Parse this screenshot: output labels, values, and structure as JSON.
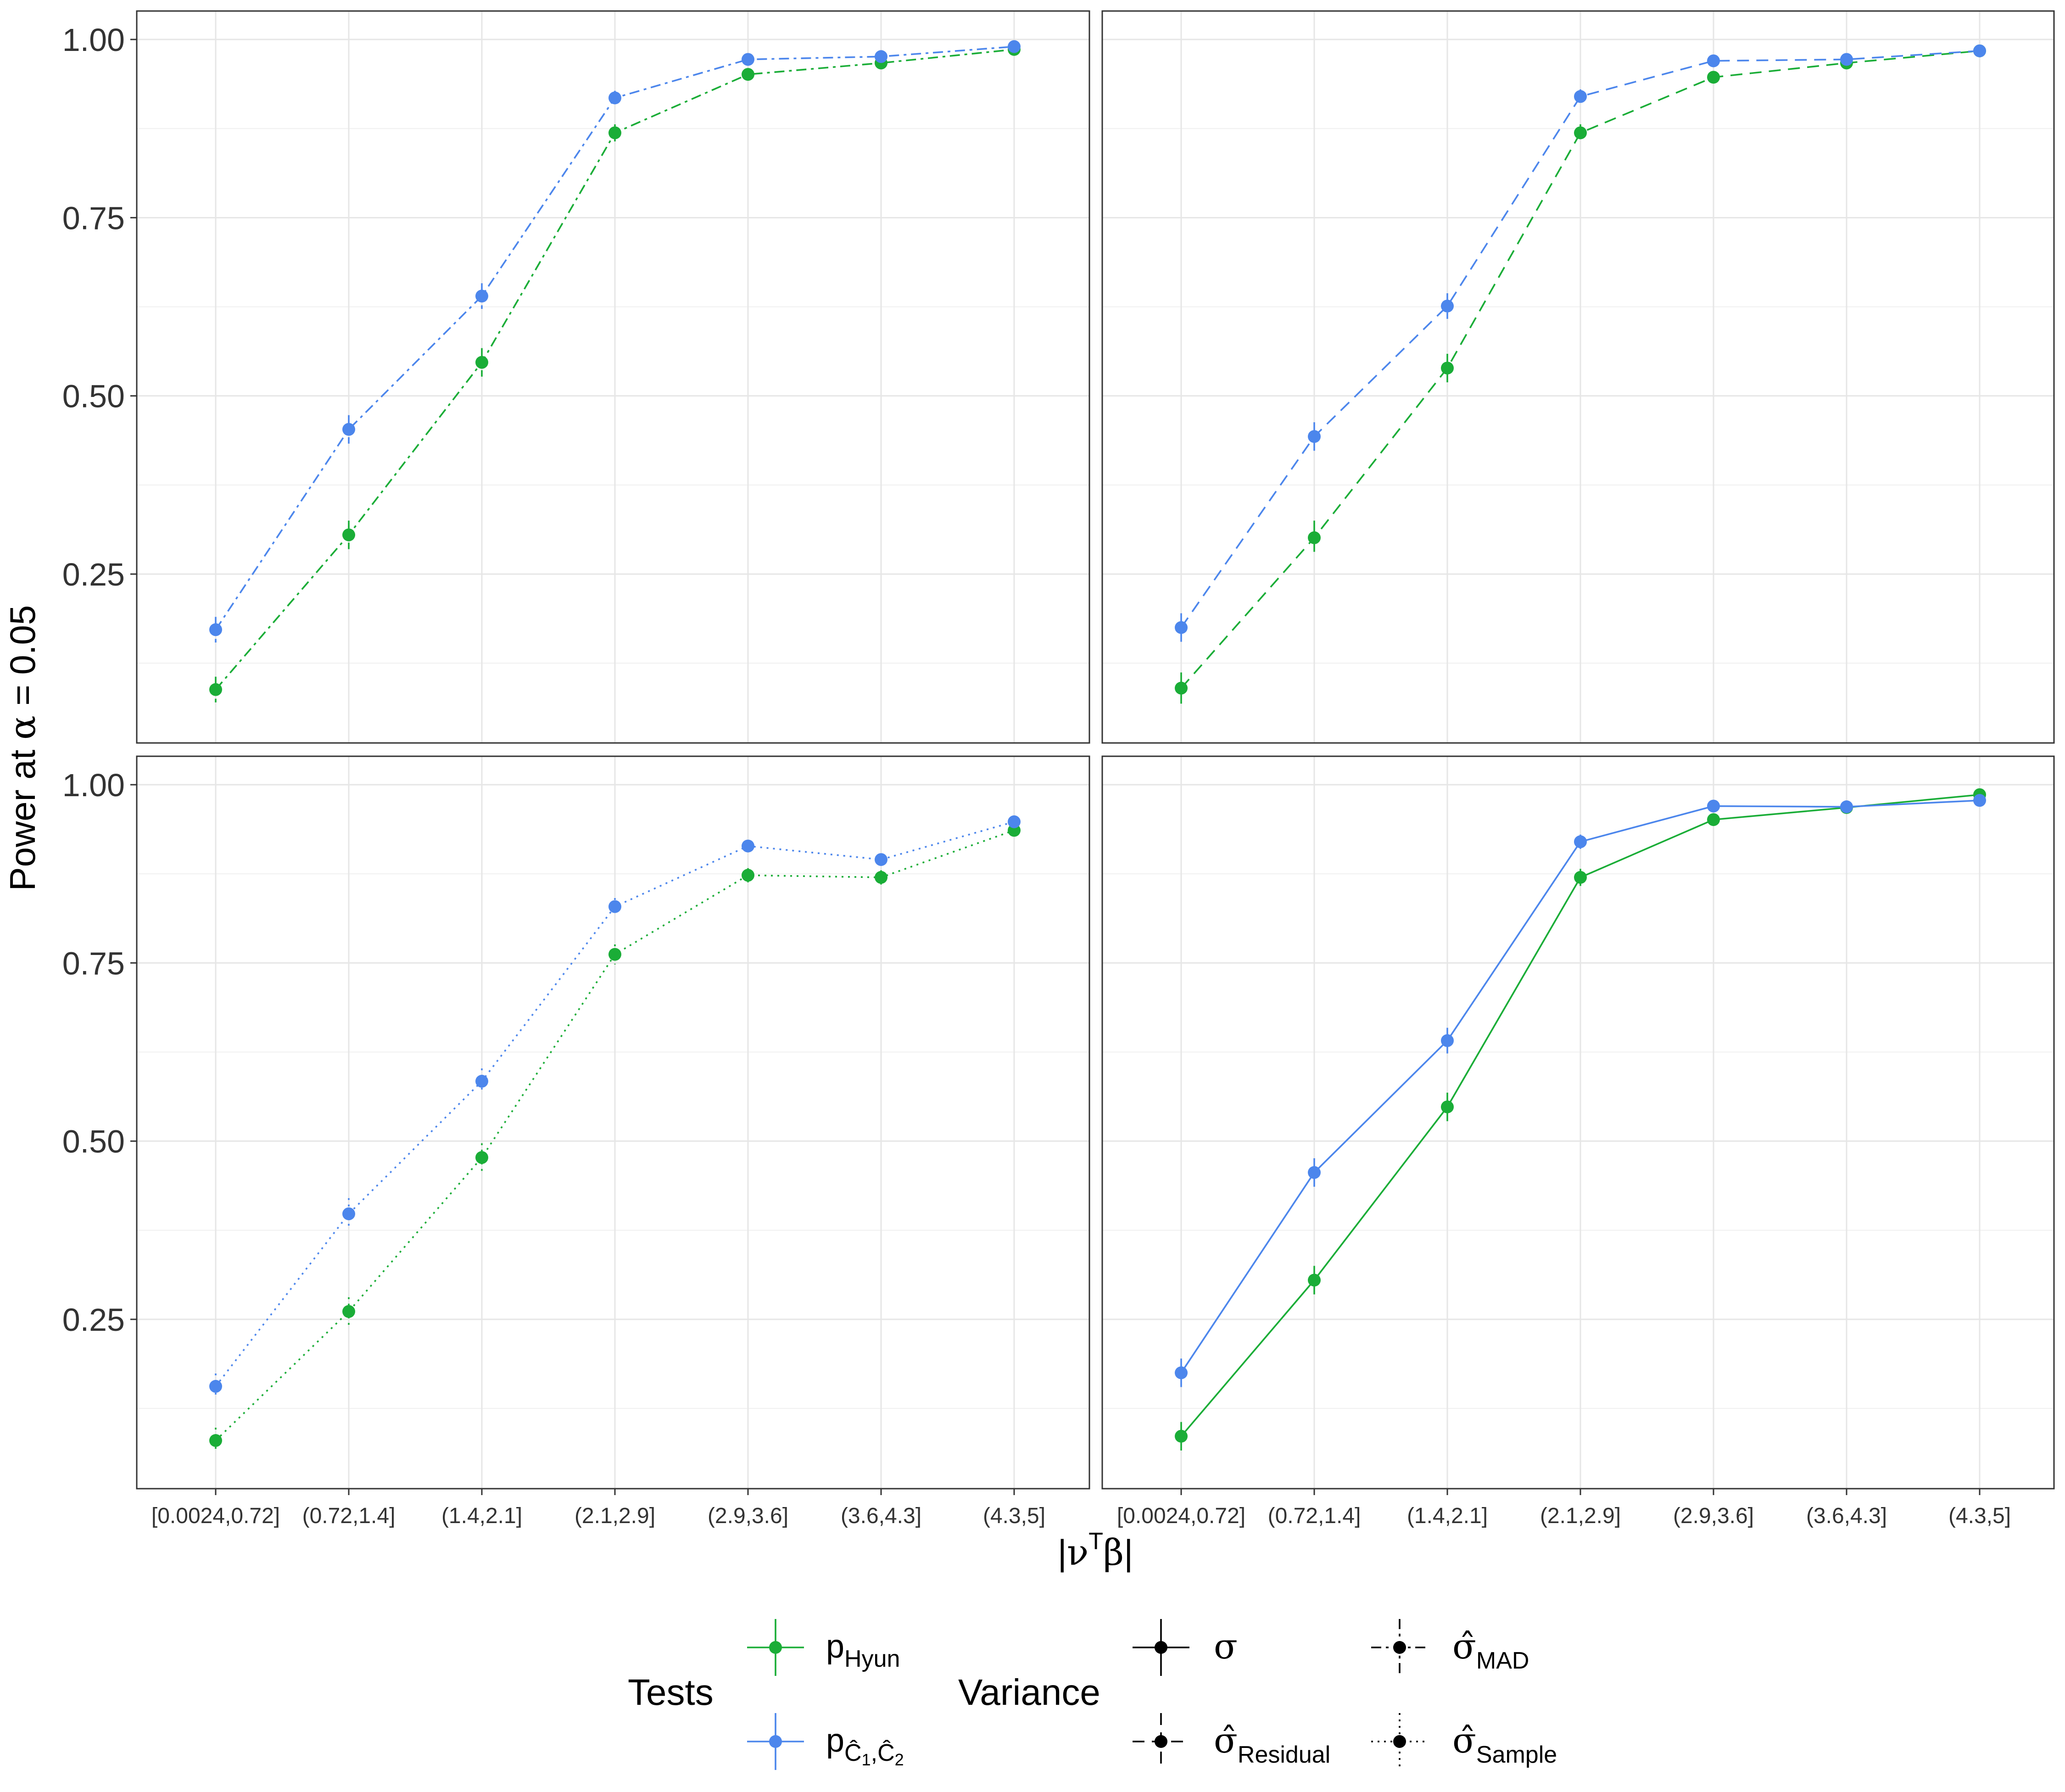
{
  "chart_data": {
    "type": "line",
    "categories": [
      "[0.0024,0.72]",
      "(0.72,1.4]",
      "(1.4,2.1]",
      "(2.1,2.9]",
      "(2.9,3.6]",
      "(3.6,4.3]",
      "(4.3,5]"
    ],
    "ylim": [
      0.0,
      1.0
    ],
    "yticks": [
      "0.25",
      "0.50",
      "0.75",
      "1.00"
    ],
    "ylabel": {
      "main": "Power at ",
      "alpha": "α",
      "rest": " = 0.05"
    },
    "xlabel": {
      "bar_left": "|",
      "nu": "ν",
      "sup": "T",
      "beta": "β",
      "bar_right": "|"
    },
    "grid": true,
    "colors": {
      "hyun": "#1aad37",
      "c1c2": "#4c86ec",
      "panel_border": "#333333",
      "grid": "#e6e6e6",
      "text": "#333333"
    },
    "panels": [
      {
        "position": "top-left",
        "variance": "sigma_mad",
        "dash": "mad",
        "series": [
          {
            "test": "hyun",
            "values": [
              0.088,
              0.305,
              0.547,
              0.869,
              0.951,
              0.967,
              0.986
            ],
            "err": [
              0.018,
              0.02,
              0.02,
              0.012,
              0.008,
              0.007,
              0.005
            ]
          },
          {
            "test": "c1c2",
            "values": [
              0.172,
              0.453,
              0.64,
              0.918,
              0.972,
              0.976,
              0.99
            ],
            "err": [
              0.018,
              0.02,
              0.018,
              0.01,
              0.006,
              0.006,
              0.004
            ]
          }
        ]
      },
      {
        "position": "top-right",
        "variance": "sigma_residual",
        "dash": "residual",
        "series": [
          {
            "test": "hyun",
            "values": [
              0.09,
              0.301,
              0.539,
              0.869,
              0.947,
              0.967,
              0.984
            ],
            "err": [
              0.022,
              0.024,
              0.02,
              0.012,
              0.008,
              0.007,
              0.005
            ]
          },
          {
            "test": "c1c2",
            "values": [
              0.175,
              0.443,
              0.626,
              0.92,
              0.97,
              0.972,
              0.984
            ],
            "err": [
              0.02,
              0.02,
              0.018,
              0.01,
              0.006,
              0.006,
              0.004
            ]
          }
        ]
      },
      {
        "position": "bottom-left",
        "variance": "sigma_sample",
        "dash": "sample",
        "series": [
          {
            "test": "hyun",
            "values": [
              0.08,
              0.261,
              0.477,
              0.762,
              0.873,
              0.87,
              0.936
            ],
            "err": [
              0.018,
              0.02,
              0.02,
              0.014,
              0.01,
              0.01,
              0.007
            ]
          },
          {
            "test": "c1c2",
            "values": [
              0.156,
              0.398,
              0.584,
              0.829,
              0.914,
              0.895,
              0.948
            ],
            "err": [
              0.018,
              0.022,
              0.018,
              0.012,
              0.008,
              0.008,
              0.006
            ]
          }
        ]
      },
      {
        "position": "bottom-right",
        "variance": "sigma",
        "dash": "solid",
        "series": [
          {
            "test": "hyun",
            "values": [
              0.086,
              0.305,
              0.548,
              0.87,
              0.951,
              0.968,
              0.986
            ],
            "err": [
              0.02,
              0.02,
              0.02,
              0.012,
              0.008,
              0.007,
              0.005
            ]
          },
          {
            "test": "c1c2",
            "values": [
              0.175,
              0.456,
              0.641,
              0.92,
              0.97,
              0.969,
              0.978
            ],
            "err": [
              0.02,
              0.02,
              0.018,
              0.01,
              0.006,
              0.006,
              0.005
            ]
          }
        ]
      }
    ],
    "legend": {
      "placement": "bottom",
      "tests_title": "Tests",
      "variance_title": "Variance",
      "tests": [
        {
          "key": "hyun",
          "base": "p",
          "sub": "Hyun"
        },
        {
          "key": "c1c2",
          "base": "p",
          "sub_parts": [
            "Ĉ",
            "1",
            ",Ĉ",
            "2"
          ]
        }
      ],
      "variances": [
        {
          "key": "sigma",
          "dash": "solid",
          "symbol": "σ",
          "sub": ""
        },
        {
          "key": "sigma_mad",
          "dash": "mad",
          "symbol": "σ̂",
          "sub": "MAD"
        },
        {
          "key": "sigma_residual",
          "dash": "residual",
          "symbol": "σ̂",
          "sub": "Residual"
        },
        {
          "key": "sigma_sample",
          "dash": "sample",
          "symbol": "σ̂",
          "sub": "Sample"
        }
      ]
    }
  }
}
